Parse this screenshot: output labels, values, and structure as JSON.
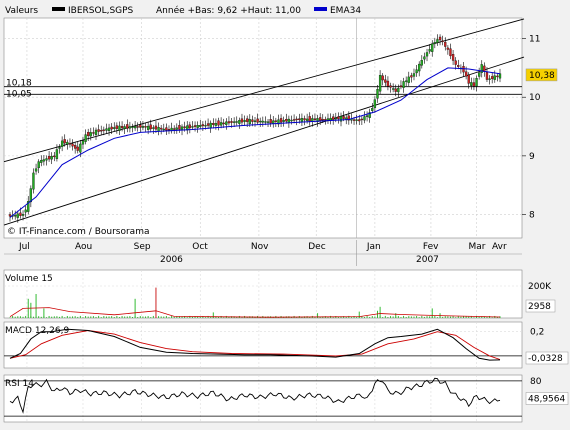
{
  "header": {
    "valeurs_label": "Valeurs",
    "symbol": "IBERSOL,SGPS",
    "stats": "Année +Bas: 9,62 +Haut: 11,00",
    "ema_label": "EMA34",
    "colors": {
      "price": "#000000",
      "ema": "#0000cc"
    }
  },
  "credit": "© IT-Finance.com / Boursorama",
  "chart_data": [
    {
      "type": "candlestick",
      "title": "IBERSOL,SGPS",
      "ylim": [
        7.6,
        11.35
      ],
      "y_ticks": [
        "11",
        "10",
        "9",
        "8"
      ],
      "y_tick_values": [
        11,
        10,
        9,
        8
      ],
      "months": [
        "Jul",
        "Aou",
        "Sep",
        "Oct",
        "Nov",
        "Dec",
        "Jan",
        "Fev",
        "Mar",
        "Avr"
      ],
      "years": [
        "2006",
        "2007"
      ],
      "last_value": "10,38",
      "reference_lines": [
        {
          "label": "10,18",
          "value": 10.18
        },
        {
          "label": "10,05",
          "value": 10.05
        }
      ],
      "price_anchors": [
        [
          0,
          7.98
        ],
        [
          10,
          8.0
        ],
        [
          14,
          8.2
        ],
        [
          18,
          8.7
        ],
        [
          22,
          8.9
        ],
        [
          28,
          8.95
        ],
        [
          34,
          9.0
        ],
        [
          40,
          9.25
        ],
        [
          46,
          9.2
        ],
        [
          52,
          9.1
        ],
        [
          58,
          9.35
        ],
        [
          66,
          9.42
        ],
        [
          80,
          9.48
        ],
        [
          100,
          9.5
        ],
        [
          120,
          9.45
        ],
        [
          140,
          9.5
        ],
        [
          160,
          9.55
        ],
        [
          180,
          9.6
        ],
        [
          200,
          9.58
        ],
        [
          220,
          9.62
        ],
        [
          240,
          9.62
        ],
        [
          255,
          9.65
        ],
        [
          268,
          9.6
        ],
        [
          276,
          9.72
        ],
        [
          280,
          9.95
        ],
        [
          284,
          10.35
        ],
        [
          290,
          10.2
        ],
        [
          296,
          10.1
        ],
        [
          302,
          10.25
        ],
        [
          310,
          10.4
        ],
        [
          318,
          10.7
        ],
        [
          326,
          10.95
        ],
        [
          330,
          11.0
        ],
        [
          336,
          10.8
        ],
        [
          342,
          10.55
        ],
        [
          348,
          10.45
        ],
        [
          352,
          10.25
        ],
        [
          356,
          10.2
        ],
        [
          362,
          10.55
        ],
        [
          366,
          10.3
        ],
        [
          372,
          10.35
        ],
        [
          376,
          10.38
        ]
      ],
      "ema34": [
        [
          0,
          7.95
        ],
        [
          20,
          8.3
        ],
        [
          40,
          8.85
        ],
        [
          60,
          9.1
        ],
        [
          80,
          9.3
        ],
        [
          100,
          9.4
        ],
        [
          140,
          9.45
        ],
        [
          180,
          9.52
        ],
        [
          220,
          9.57
        ],
        [
          260,
          9.62
        ],
        [
          280,
          9.75
        ],
        [
          300,
          9.95
        ],
        [
          320,
          10.3
        ],
        [
          336,
          10.5
        ],
        [
          352,
          10.48
        ],
        [
          376,
          10.4
        ]
      ],
      "channel_upper": [
        [
          0,
          8.9
        ],
        [
          376,
          11.22
        ]
      ],
      "channel_lower": [
        [
          0,
          7.82
        ],
        [
          376,
          10.55
        ]
      ]
    },
    {
      "type": "bar",
      "title": "Volume 15",
      "ylim": [
        0,
        300000
      ],
      "y_ticks": [
        "200K"
      ],
      "y_tick_values": [
        200000
      ],
      "last_value": "2958",
      "spikes": [
        [
          14,
          120000
        ],
        [
          16,
          95000
        ],
        [
          20,
          150000
        ],
        [
          26,
          60000
        ],
        [
          96,
          120000
        ],
        [
          112,
          190000
        ],
        [
          156,
          35000
        ],
        [
          236,
          30000
        ],
        [
          268,
          40000
        ],
        [
          282,
          45000
        ],
        [
          284,
          70000
        ],
        [
          296,
          30000
        ],
        [
          324,
          60000
        ],
        [
          330,
          30000
        ]
      ],
      "ma15": [
        [
          0,
          8000
        ],
        [
          10,
          60000
        ],
        [
          30,
          65000
        ],
        [
          46,
          40000
        ],
        [
          80,
          20000
        ],
        [
          112,
          45000
        ],
        [
          126,
          10000
        ],
        [
          200,
          5000
        ],
        [
          268,
          9000
        ],
        [
          284,
          28000
        ],
        [
          300,
          22000
        ],
        [
          330,
          15000
        ],
        [
          376,
          6000
        ]
      ]
    },
    {
      "type": "line",
      "title": "MACD 12,26,9",
      "ylim": [
        -0.1,
        0.28
      ],
      "y_ticks": [
        "0,2"
      ],
      "y_tick_values": [
        0.2
      ],
      "last_value": "-0,0328",
      "macd": [
        [
          0,
          -0.02
        ],
        [
          8,
          0.02
        ],
        [
          16,
          0.14
        ],
        [
          24,
          0.2
        ],
        [
          32,
          0.2
        ],
        [
          44,
          0.22
        ],
        [
          60,
          0.21
        ],
        [
          80,
          0.16
        ],
        [
          100,
          0.07
        ],
        [
          120,
          0.03
        ],
        [
          140,
          0.02
        ],
        [
          160,
          0.015
        ],
        [
          180,
          0.01
        ],
        [
          200,
          0.01
        ],
        [
          230,
          0.0
        ],
        [
          250,
          -0.01
        ],
        [
          268,
          0.02
        ],
        [
          280,
          0.1
        ],
        [
          290,
          0.15
        ],
        [
          300,
          0.16
        ],
        [
          316,
          0.18
        ],
        [
          328,
          0.22
        ],
        [
          340,
          0.15
        ],
        [
          350,
          0.06
        ],
        [
          360,
          -0.02
        ],
        [
          368,
          -0.035
        ],
        [
          376,
          -0.033
        ]
      ],
      "signal": [
        [
          0,
          -0.02
        ],
        [
          12,
          0.01
        ],
        [
          24,
          0.1
        ],
        [
          40,
          0.17
        ],
        [
          60,
          0.21
        ],
        [
          80,
          0.18
        ],
        [
          100,
          0.11
        ],
        [
          120,
          0.06
        ],
        [
          140,
          0.035
        ],
        [
          170,
          0.02
        ],
        [
          210,
          0.015
        ],
        [
          250,
          0.0
        ],
        [
          270,
          0.015
        ],
        [
          290,
          0.1
        ],
        [
          310,
          0.14
        ],
        [
          328,
          0.2
        ],
        [
          342,
          0.17
        ],
        [
          356,
          0.07
        ],
        [
          368,
          0.0
        ],
        [
          376,
          -0.03
        ]
      ]
    },
    {
      "type": "line",
      "title": "RSI 14",
      "ylim": [
        10,
        90
      ],
      "y_ticks": [
        "80"
      ],
      "y_tick_values": [
        80
      ],
      "last_value": "48,9564",
      "rsi": [
        [
          0,
          45
        ],
        [
          6,
          50
        ],
        [
          10,
          30
        ],
        [
          14,
          68
        ],
        [
          18,
          75
        ],
        [
          22,
          72
        ],
        [
          28,
          78
        ],
        [
          34,
          62
        ],
        [
          40,
          68
        ],
        [
          46,
          60
        ],
        [
          54,
          64
        ],
        [
          62,
          58
        ],
        [
          72,
          60
        ],
        [
          84,
          55
        ],
        [
          96,
          62
        ],
        [
          108,
          56
        ],
        [
          120,
          52
        ],
        [
          132,
          58
        ],
        [
          144,
          54
        ],
        [
          156,
          60
        ],
        [
          168,
          48
        ],
        [
          180,
          56
        ],
        [
          192,
          52
        ],
        [
          204,
          58
        ],
        [
          216,
          50
        ],
        [
          228,
          56
        ],
        [
          240,
          54
        ],
        [
          252,
          44
        ],
        [
          262,
          52
        ],
        [
          270,
          56
        ],
        [
          274,
          48
        ],
        [
          280,
          76
        ],
        [
          286,
          82
        ],
        [
          290,
          62
        ],
        [
          298,
          58
        ],
        [
          306,
          68
        ],
        [
          314,
          72
        ],
        [
          320,
          78
        ],
        [
          328,
          82
        ],
        [
          334,
          75
        ],
        [
          340,
          58
        ],
        [
          346,
          50
        ],
        [
          352,
          40
        ],
        [
          358,
          54
        ],
        [
          364,
          48
        ],
        [
          370,
          44
        ],
        [
          376,
          50
        ]
      ]
    }
  ]
}
